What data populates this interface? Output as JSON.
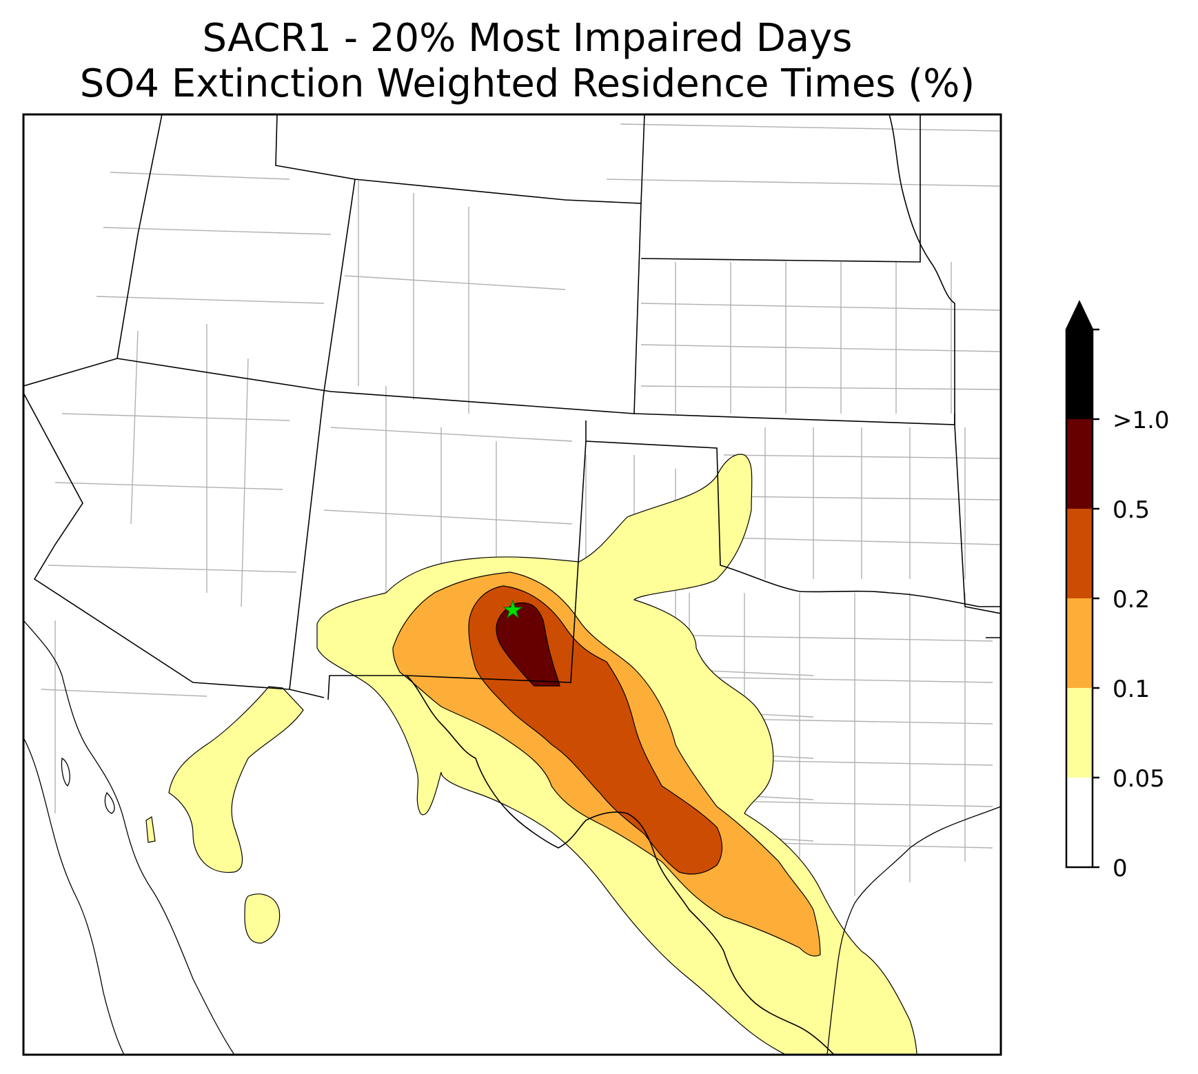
{
  "title": {
    "line1": "SACR1 - 20% Most Impaired Days",
    "line2": "SO4 Extinction Weighted Residence Times (%)"
  },
  "colorbar": {
    "ticks": [
      "0",
      "0.05",
      "0.1",
      "0.2",
      "0.5",
      ">1.0"
    ],
    "bins": [
      {
        "range": "0-0.05",
        "color": "#ffffff"
      },
      {
        "range": "0.05-0.1",
        "color": "#ffff99"
      },
      {
        "range": "0.1-0.2",
        "color": "#fdae38"
      },
      {
        "range": "0.2-0.5",
        "color": "#cc4c02"
      },
      {
        "range": "0.5-1.0",
        "color": "#660000"
      },
      {
        "range": ">1.0",
        "color": "#000000"
      }
    ]
  },
  "site_marker": {
    "icon": "star-icon",
    "color": "#00e000"
  }
}
